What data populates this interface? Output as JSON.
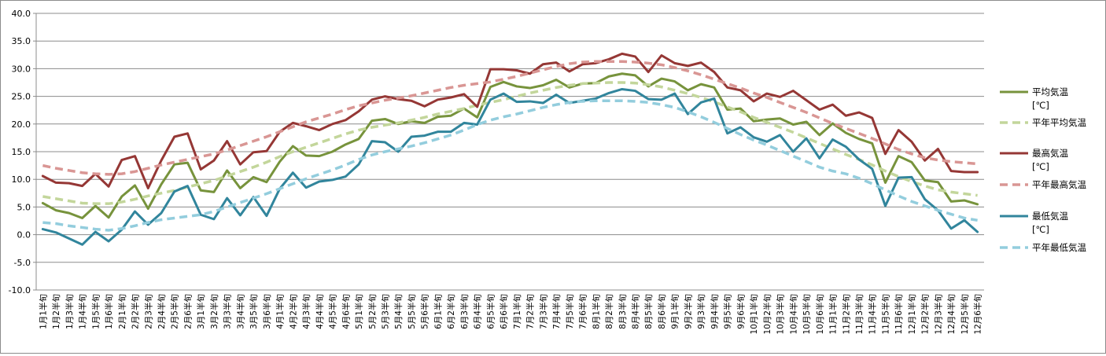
{
  "chart_data": {
    "type": "line",
    "ylim": [
      -10,
      40
    ],
    "y_ticks": [
      "-10.0",
      "-5.0",
      "0.0",
      "5.0",
      "10.0",
      "15.0",
      "20.0",
      "25.0",
      "30.0",
      "35.0",
      "40.0"
    ],
    "grid": "horizontal",
    "legend_position": "right",
    "x": [
      "1月1半旬",
      "1月2半旬",
      "1月3半旬",
      "1月4半旬",
      "1月5半旬",
      "1月6半旬",
      "2月1半旬",
      "2月2半旬",
      "2月3半旬",
      "2月4半旬",
      "2月5半旬",
      "2月6半旬",
      "3月1半旬",
      "3月2半旬",
      "3月3半旬",
      "3月4半旬",
      "3月5半旬",
      "3月6半旬",
      "4月1半旬",
      "4月2半旬",
      "4月3半旬",
      "4月4半旬",
      "4月5半旬",
      "4月6半旬",
      "5月1半旬",
      "5月2半旬",
      "5月3半旬",
      "5月4半旬",
      "5月5半旬",
      "5月6半旬",
      "6月1半旬",
      "6月2半旬",
      "6月3半旬",
      "6月4半旬",
      "6月5半旬",
      "6月6半旬",
      "7月1半旬",
      "7月2半旬",
      "7月3半旬",
      "7月4半旬",
      "7月5半旬",
      "7月6半旬",
      "8月1半旬",
      "8月2半旬",
      "8月3半旬",
      "8月4半旬",
      "8月5半旬",
      "8月6半旬",
      "9月1半旬",
      "9月2半旬",
      "9月3半旬",
      "9月4半旬",
      "9月5半旬",
      "9月6半旬",
      "10月1半旬",
      "10月2半旬",
      "10月3半旬",
      "10月4半旬",
      "10月5半旬",
      "10月6半旬",
      "11月1半旬",
      "11月2半旬",
      "11月3半旬",
      "11月4半旬",
      "11月5半旬",
      "11月6半旬",
      "12月1半旬",
      "12月2半旬",
      "12月3半旬",
      "12月4半旬",
      "12月5半旬",
      "12月6半旬"
    ],
    "series": [
      {
        "name": "平均気温\n[℃]",
        "color": "#77933c",
        "dashed": false,
        "values": [
          5.7,
          4.4,
          3.9,
          3.0,
          5.2,
          3.1,
          6.9,
          8.9,
          4.7,
          9.1,
          12.7,
          13.0,
          8.0,
          7.7,
          11.6,
          8.4,
          10.4,
          9.5,
          13.2,
          16.0,
          14.3,
          14.2,
          15.0,
          16.3,
          17.3,
          20.6,
          20.9,
          20.0,
          20.5,
          20.2,
          21.3,
          21.5,
          22.8,
          21.2,
          26.7,
          27.6,
          26.8,
          26.5,
          27.0,
          28.0,
          26.6,
          27.3,
          27.4,
          28.6,
          29.1,
          28.8,
          26.8,
          28.2,
          27.7,
          26.1,
          27.2,
          26.6,
          22.6,
          22.8,
          20.5,
          20.8,
          21.0,
          19.9,
          20.4,
          18.0,
          20.1,
          18.4,
          17.3,
          16.5,
          9.4,
          14.2,
          13.1,
          9.8,
          9.5,
          6.0,
          6.2,
          5.5
        ]
      },
      {
        "name": "平年平均気温",
        "color": "#c3d69b",
        "dashed": true,
        "values": [
          6.9,
          6.5,
          6.1,
          5.7,
          5.6,
          5.6,
          5.9,
          6.4,
          7.0,
          7.5,
          8.0,
          8.6,
          9.2,
          9.8,
          10.6,
          11.4,
          12.2,
          13.1,
          14.1,
          15.0,
          15.8,
          16.6,
          17.4,
          18.2,
          18.9,
          19.4,
          19.8,
          20.2,
          20.7,
          21.2,
          21.8,
          22.3,
          22.8,
          23.4,
          23.9,
          24.4,
          25.0,
          25.6,
          26.1,
          26.6,
          27.0,
          27.3,
          27.4,
          27.5,
          27.5,
          27.4,
          27.1,
          26.7,
          26.1,
          25.5,
          24.8,
          24.0,
          23.1,
          22.2,
          21.2,
          20.3,
          19.4,
          18.5,
          17.5,
          16.5,
          15.5,
          14.5,
          13.6,
          12.6,
          11.5,
          10.5,
          9.6,
          8.8,
          8.1,
          7.7,
          7.4,
          7.1
        ]
      },
      {
        "name": "最高気温\n[℃]",
        "color": "#953735",
        "dashed": false,
        "values": [
          10.6,
          9.4,
          9.3,
          8.8,
          11.0,
          8.7,
          13.5,
          14.2,
          8.4,
          13.4,
          17.7,
          18.3,
          11.8,
          13.4,
          16.9,
          12.7,
          14.9,
          15.1,
          18.6,
          20.2,
          19.6,
          18.9,
          20.0,
          20.7,
          22.3,
          24.4,
          25.0,
          24.5,
          24.2,
          23.2,
          24.4,
          24.8,
          25.4,
          23.1,
          29.9,
          29.9,
          29.7,
          29.1,
          30.8,
          31.1,
          29.5,
          30.8,
          31.0,
          31.7,
          32.7,
          32.2,
          29.4,
          32.4,
          31.0,
          30.5,
          31.1,
          29.4,
          26.6,
          26.1,
          24.1,
          25.5,
          24.9,
          26.0,
          24.3,
          22.6,
          23.5,
          21.5,
          22.1,
          21.1,
          14.6,
          18.9,
          16.8,
          13.4,
          15.5,
          11.5,
          11.3,
          11.3
        ]
      },
      {
        "name": "平年最高気温",
        "color": "#d99694",
        "dashed": true,
        "values": [
          12.5,
          12.0,
          11.6,
          11.2,
          11.0,
          10.9,
          11.0,
          11.4,
          12.0,
          12.6,
          13.1,
          13.6,
          14.1,
          14.6,
          15.3,
          16.1,
          16.9,
          17.7,
          18.6,
          19.5,
          20.4,
          21.1,
          21.8,
          22.6,
          23.3,
          23.8,
          24.3,
          24.7,
          25.1,
          25.6,
          26.1,
          26.6,
          27.0,
          27.3,
          27.6,
          28.1,
          28.6,
          29.2,
          29.8,
          30.4,
          30.9,
          31.2,
          31.3,
          31.3,
          31.3,
          31.2,
          31.0,
          30.7,
          30.2,
          29.6,
          28.9,
          28.1,
          27.3,
          26.5,
          25.6,
          24.8,
          23.9,
          23.0,
          22.1,
          21.1,
          20.1,
          19.2,
          18.3,
          17.4,
          16.4,
          15.4,
          14.6,
          13.9,
          13.5,
          13.2,
          13.0,
          12.8
        ]
      },
      {
        "name": "最低気温\n[℃]",
        "color": "#31859c",
        "dashed": false,
        "values": [
          1.0,
          0.4,
          -0.7,
          -1.8,
          0.5,
          -1.2,
          0.9,
          4.2,
          1.8,
          3.9,
          7.8,
          8.8,
          3.6,
          2.8,
          6.6,
          3.5,
          6.8,
          3.4,
          8.3,
          11.2,
          8.5,
          9.6,
          9.9,
          10.5,
          12.7,
          16.9,
          16.7,
          15.0,
          17.7,
          17.9,
          18.6,
          18.6,
          20.2,
          19.9,
          24.4,
          25.5,
          24.0,
          24.1,
          23.8,
          25.3,
          23.8,
          24.2,
          24.6,
          25.6,
          26.3,
          26.0,
          24.5,
          24.4,
          25.5,
          21.8,
          23.9,
          24.6,
          18.3,
          19.4,
          17.6,
          16.8,
          18.0,
          15.0,
          17.4,
          13.8,
          17.2,
          15.9,
          13.6,
          11.9,
          5.2,
          10.3,
          10.4,
          6.4,
          4.4,
          1.1,
          2.6,
          0.5
        ]
      },
      {
        "name": "平年最低気温",
        "color": "#93cddd",
        "dashed": true,
        "values": [
          2.2,
          2.0,
          1.6,
          1.3,
          1.0,
          0.8,
          1.1,
          1.6,
          2.2,
          2.7,
          3.0,
          3.3,
          3.6,
          4.2,
          5.0,
          5.8,
          6.6,
          7.4,
          8.3,
          9.2,
          10.1,
          10.9,
          11.7,
          12.6,
          13.6,
          14.4,
          15.0,
          15.5,
          16.0,
          16.6,
          17.3,
          18.0,
          18.9,
          19.9,
          20.7,
          21.3,
          21.8,
          22.4,
          23.0,
          23.5,
          23.9,
          24.1,
          24.2,
          24.2,
          24.2,
          24.1,
          23.9,
          23.5,
          23.0,
          22.2,
          21.3,
          20.3,
          19.2,
          18.1,
          17.1,
          16.2,
          15.2,
          14.2,
          13.2,
          12.2,
          11.5,
          11.0,
          10.2,
          9.2,
          8.1,
          7.0,
          6.0,
          5.2,
          4.4,
          3.7,
          3.0,
          2.6
        ]
      }
    ]
  }
}
